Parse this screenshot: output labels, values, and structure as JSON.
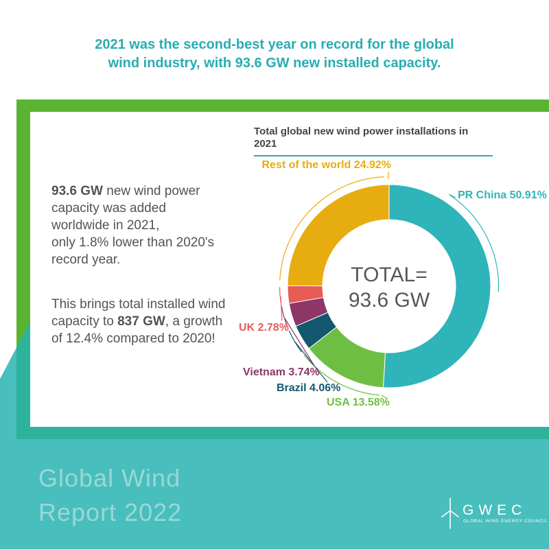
{
  "headline": {
    "text": "2021 was the second-best year on record for the global\nwind industry, with 93.6 GW new installed capacity."
  },
  "card": {
    "paragraph1": {
      "bold": "93.6 GW",
      "rest": " new wind power\ncapacity was added\nworldwide in 2021,\nonly 1.8% lower than 2020's\nrecord year."
    },
    "paragraph2": {
      "pre": "This brings total installed wind\ncapacity to ",
      "bold": "837 GW",
      "post": ", a growth\nof 12.4% compared to 2020!"
    }
  },
  "chart_data": {
    "type": "pie",
    "subtype": "donut",
    "title": "Total global new wind power installations in 2021",
    "center_label": "TOTAL=\n93.6 GW",
    "total": "93.6 GW",
    "units": "%",
    "slices": [
      {
        "label": "PR China",
        "value": 50.91,
        "display": "PR China 50.91%",
        "color": "#2FB4BA"
      },
      {
        "label": "USA",
        "value": 13.58,
        "display": "USA 13.58%",
        "color": "#6FBE44"
      },
      {
        "label": "Brazil",
        "value": 4.06,
        "display": "Brazil 4.06%",
        "color": "#14586F"
      },
      {
        "label": "Vietnam",
        "value": 3.74,
        "display": "Vietnam 3.74%",
        "color": "#8C3767"
      },
      {
        "label": "UK",
        "value": 2.78,
        "display": "UK 2.78%",
        "color": "#E95C55"
      },
      {
        "label": "Rest of the world",
        "value": 24.92,
        "display": "Rest of the world 24.92%",
        "color": "#E7AD10"
      }
    ]
  },
  "footer": {
    "title": "Global Wind\nReport 2022",
    "logo": {
      "name": "GWEC",
      "tagline": "GLOBAL WIND ENERGY COUNCIL"
    }
  },
  "colors": {
    "frame_green": "#5BB431",
    "teal_banner": "#49BEBD",
    "headline_teal": "#28ADB2",
    "title_underline": "#2AACB2",
    "title_text": "#414448",
    "body_text": "#515356",
    "center_text": "#55575A",
    "footer_text": "#99D8D6",
    "logo_white": "#FFFFFF"
  }
}
